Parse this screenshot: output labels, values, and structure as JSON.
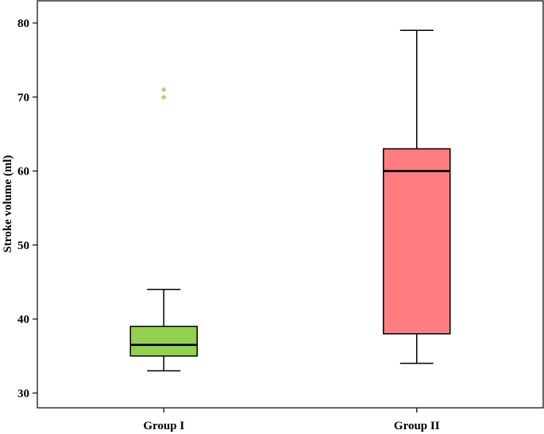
{
  "chart_data": {
    "type": "box",
    "ylabel": "Stroke volume (ml)",
    "xlabel": "",
    "ylim": [
      28,
      83
    ],
    "yticks": [
      30,
      40,
      50,
      60,
      70,
      80
    ],
    "categories": [
      "Group I",
      "Group II"
    ],
    "boxes": [
      {
        "label": "Group I",
        "whisker_low": 33,
        "q1": 35,
        "median": 36.5,
        "q3": 39,
        "whisker_high": 44,
        "outliers": [
          71,
          70
        ],
        "color": "#92d050"
      },
      {
        "label": "Group II",
        "whisker_low": 34,
        "q1": 38,
        "median": 60,
        "q3": 63,
        "whisker_high": 79,
        "outliers": [],
        "color": "#ff7c80"
      }
    ],
    "outlier_marker": "*",
    "grid": false,
    "legend": "none"
  }
}
